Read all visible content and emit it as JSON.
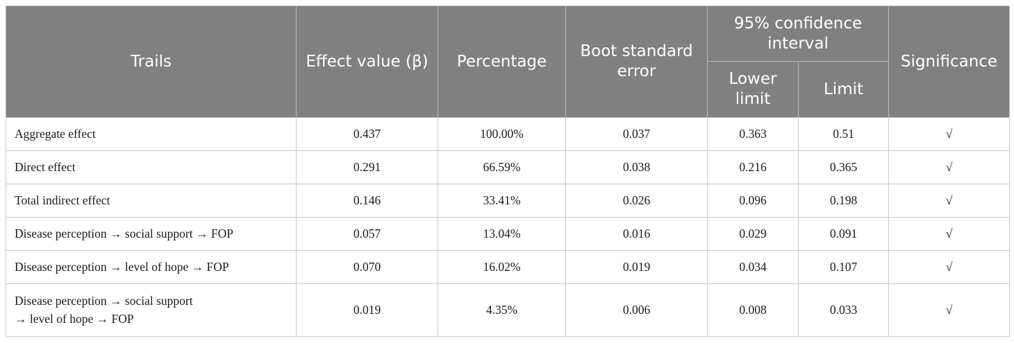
{
  "headers": {
    "trails": "Trails",
    "effect_value": "Effect value (β)",
    "percentage": "Percentage",
    "boot_se": "Boot standard error",
    "ci": "95% confidence interval",
    "lower_limit": "Lower limit",
    "limit": "Limit",
    "significance": "Significance"
  },
  "rows": [
    {
      "trail": "Aggregate effect",
      "effect": "0.437",
      "percentage": "100.00%",
      "se": "0.037",
      "lower": "0.363",
      "limit": "0.51",
      "sig": "√"
    },
    {
      "trail": "Direct effect",
      "effect": "0.291",
      "percentage": "66.59%",
      "se": "0.038",
      "lower": "0.216",
      "limit": "0.365",
      "sig": "√"
    },
    {
      "trail": "Total indirect effect",
      "effect": "0.146",
      "percentage": "33.41%",
      "se": "0.026",
      "lower": "0.096",
      "limit": "0.198",
      "sig": "√"
    },
    {
      "trail": "Disease perception → social support → FOP",
      "effect": "0.057",
      "percentage": "13.04%",
      "se": "0.016",
      "lower": "0.029",
      "limit": "0.091",
      "sig": "√"
    },
    {
      "trail": "Disease perception → level of hope → FOP",
      "effect": "0.070",
      "percentage": "16.02%",
      "se": "0.019",
      "lower": "0.034",
      "limit": "0.107",
      "sig": "√"
    },
    {
      "trail_line1": "Disease perception → social support",
      "trail_line2": "→ level of hope → FOP",
      "effect": "0.019",
      "percentage": "4.35%",
      "se": "0.006",
      "lower": "0.008",
      "limit": "0.033",
      "sig": "√"
    }
  ]
}
